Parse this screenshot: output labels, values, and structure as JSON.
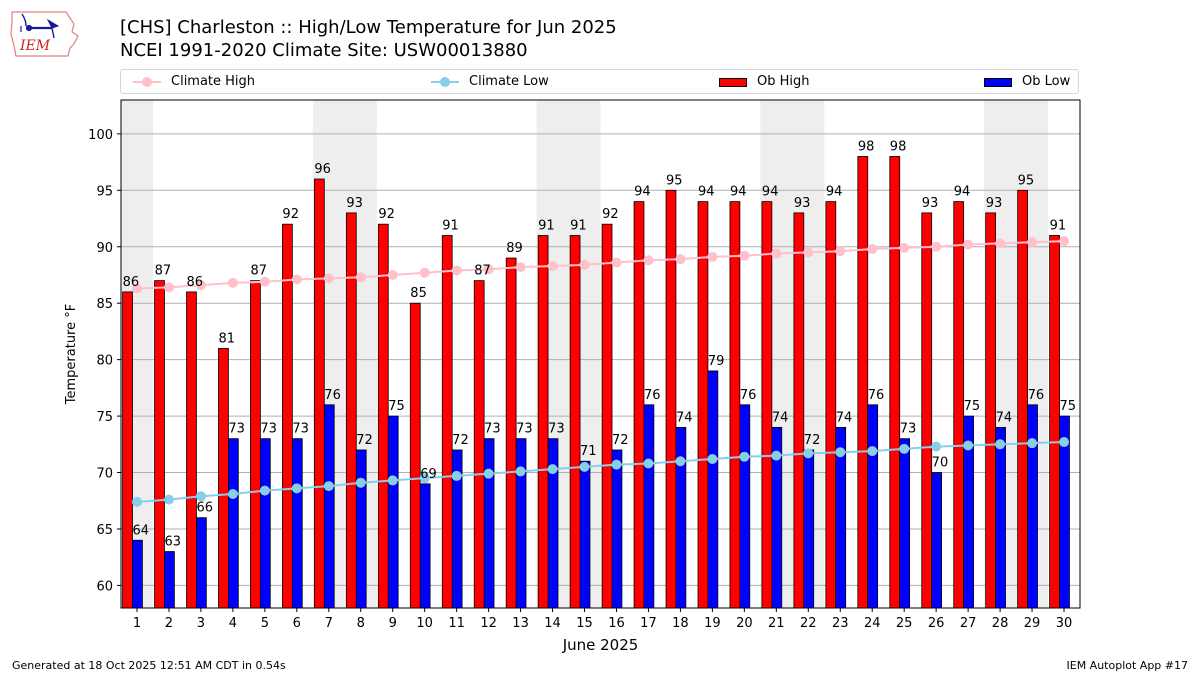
{
  "header": {
    "title_line1": "[CHS] Charleston :: High/Low Temperature for Jun 2025",
    "title_line2": "NCEI 1991-2020 Climate Site: USW00013880",
    "logo_text": "IEM"
  },
  "footer": {
    "generated": "Generated at 18 Oct 2025 12:51 AM CDT in 0.54s",
    "app": "IEM Autoplot App #17"
  },
  "legend": [
    {
      "label": "Climate High",
      "kind": "line",
      "color": "#ffc0cb"
    },
    {
      "label": "Climate Low",
      "kind": "line",
      "color": "#87ceeb"
    },
    {
      "label": "Ob High",
      "kind": "patch",
      "color": "#ff0000"
    },
    {
      "label": "Ob Low",
      "kind": "patch",
      "color": "#0000ff"
    }
  ],
  "colors": {
    "ob_high": "#ff0000",
    "ob_low": "#0000ff",
    "climate_high": "#ffc0cb",
    "climate_low": "#87ceeb",
    "weekend_shade": "#eeeeee",
    "grid": "#b0b0b0"
  },
  "chart_data": {
    "type": "bar",
    "title": "[CHS] Charleston :: High/Low Temperature for Jun 2025",
    "subtitle": "NCEI 1991-2020 Climate Site: USW00013880",
    "xlabel": "June 2025",
    "ylabel": "Temperature °F",
    "xlim": [
      0.5,
      30.5
    ],
    "ylim": [
      58,
      103
    ],
    "yticks": [
      60,
      65,
      70,
      75,
      80,
      85,
      90,
      95,
      100
    ],
    "grid": true,
    "legend_position": "top",
    "weekend_days": [
      1,
      7,
      8,
      14,
      15,
      21,
      22,
      28,
      29
    ],
    "categories": [
      1,
      2,
      3,
      4,
      5,
      6,
      7,
      8,
      9,
      10,
      11,
      12,
      13,
      14,
      15,
      16,
      17,
      18,
      19,
      20,
      21,
      22,
      23,
      24,
      25,
      26,
      27,
      28,
      29,
      30
    ],
    "series": [
      {
        "name": "Ob High",
        "type": "bar",
        "values": [
          86,
          87,
          86,
          81,
          87,
          92,
          96,
          93,
          92,
          85,
          91,
          87,
          89,
          91,
          91,
          92,
          94,
          95,
          94,
          94,
          94,
          93,
          94,
          98,
          98,
          93,
          94,
          93,
          95,
          91
        ]
      },
      {
        "name": "Ob Low",
        "type": "bar",
        "values": [
          64,
          63,
          66,
          73,
          73,
          73,
          76,
          72,
          75,
          69,
          72,
          73,
          73,
          73,
          71,
          72,
          76,
          74,
          79,
          76,
          74,
          72,
          74,
          76,
          73,
          70,
          75,
          74,
          76,
          75
        ]
      },
      {
        "name": "Climate High",
        "type": "line",
        "values": [
          86.3,
          86.4,
          86.6,
          86.8,
          86.9,
          87.1,
          87.2,
          87.3,
          87.5,
          87.7,
          87.9,
          88.0,
          88.2,
          88.3,
          88.4,
          88.6,
          88.8,
          88.9,
          89.1,
          89.2,
          89.4,
          89.5,
          89.6,
          89.8,
          89.9,
          90.0,
          90.2,
          90.3,
          90.4,
          90.5
        ]
      },
      {
        "name": "Climate Low",
        "type": "line",
        "values": [
          67.4,
          67.6,
          67.9,
          68.1,
          68.4,
          68.6,
          68.8,
          69.1,
          69.3,
          69.5,
          69.7,
          69.9,
          70.1,
          70.3,
          70.5,
          70.7,
          70.8,
          71.0,
          71.2,
          71.4,
          71.5,
          71.7,
          71.8,
          71.9,
          72.1,
          72.3,
          72.4,
          72.5,
          72.6,
          72.7
        ]
      }
    ]
  }
}
